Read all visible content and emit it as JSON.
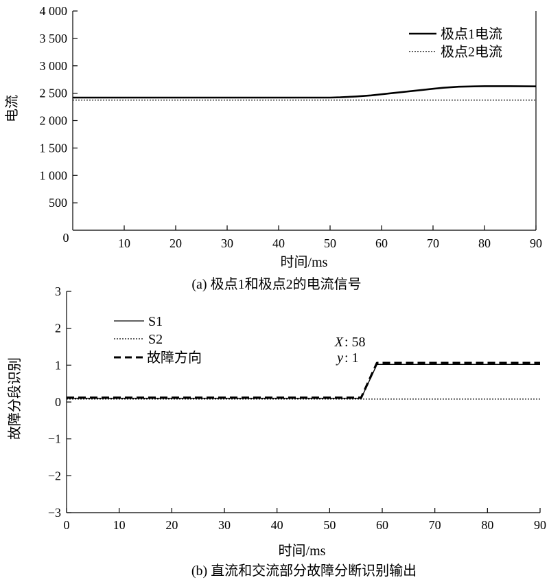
{
  "chart_data": [
    {
      "type": "line",
      "caption": "(a) 极点1和极点2的电流信号",
      "xlabel": "时间/ms",
      "ylabel": "电流",
      "xlim": [
        0,
        90
      ],
      "ylim": [
        0,
        4000
      ],
      "xticks": [
        10,
        20,
        30,
        40,
        50,
        60,
        70,
        80,
        90
      ],
      "xtick_labels": [
        "10",
        "20",
        "30",
        "40",
        "50",
        "60",
        "70",
        "80",
        "90"
      ],
      "yticks": [
        500,
        1000,
        1500,
        2000,
        2500,
        3000,
        3500,
        4000
      ],
      "ytick_labels": [
        "500",
        "1 000",
        "1 500",
        "2 000",
        "2 500",
        "3 000",
        "3 500",
        "4 000"
      ],
      "origin_label": "0",
      "grid": false,
      "legend_position": "top-right",
      "series": [
        {
          "name": "极点1电流",
          "style": "solid",
          "x": [
            0,
            10,
            20,
            30,
            40,
            50,
            52,
            55,
            58,
            60,
            62,
            65,
            68,
            70,
            72,
            75,
            78,
            80,
            85,
            90
          ],
          "y": [
            2420,
            2420,
            2420,
            2420,
            2420,
            2420,
            2425,
            2440,
            2460,
            2480,
            2500,
            2530,
            2560,
            2580,
            2600,
            2618,
            2625,
            2628,
            2628,
            2625
          ]
        },
        {
          "name": "极点2电流",
          "style": "dotted",
          "x": [
            0,
            90
          ],
          "y": [
            2375,
            2375
          ]
        }
      ]
    },
    {
      "type": "line",
      "caption": "(b) 直流和交流部分故障分断识别输出",
      "xlabel": "时间/ms",
      "ylabel": "故障分段识别",
      "xlim": [
        0,
        90
      ],
      "ylim": [
        -3,
        3
      ],
      "xticks": [
        0,
        10,
        20,
        30,
        40,
        50,
        60,
        70,
        80,
        90
      ],
      "xtick_labels": [
        "0",
        "10",
        "20",
        "30",
        "40",
        "50",
        "60",
        "70",
        "80",
        "90"
      ],
      "yticks": [
        -3,
        -2,
        -1,
        0,
        1,
        2,
        3
      ],
      "ytick_labels": [
        "−3",
        "−2",
        "−1",
        "0",
        "1",
        "2",
        "3"
      ],
      "grid": false,
      "legend_position": "top-left",
      "annotation": {
        "x_label": "X",
        "x_value": ": 58",
        "y_label": "y",
        "y_value": ": 1"
      },
      "series": [
        {
          "name": "S1",
          "style": "solid-thin",
          "x": [
            0,
            56,
            59,
            90
          ],
          "y": [
            0.1,
            0.1,
            1.02,
            1.02
          ]
        },
        {
          "name": "S2",
          "style": "dotted",
          "x": [
            0,
            90
          ],
          "y": [
            0.08,
            0.08
          ]
        },
        {
          "name": "故障方向",
          "style": "dashed",
          "x": [
            0,
            56,
            59,
            90
          ],
          "y": [
            0.12,
            0.12,
            1.06,
            1.06
          ]
        }
      ]
    }
  ]
}
